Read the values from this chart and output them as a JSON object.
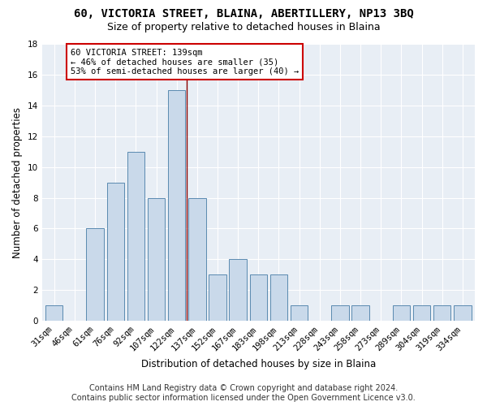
{
  "title": "60, VICTORIA STREET, BLAINA, ABERTILLERY, NP13 3BQ",
  "subtitle": "Size of property relative to detached houses in Blaina",
  "xlabel": "Distribution of detached houses by size in Blaina",
  "ylabel": "Number of detached properties",
  "categories": [
    "31sqm",
    "46sqm",
    "61sqm",
    "76sqm",
    "92sqm",
    "107sqm",
    "122sqm",
    "137sqm",
    "152sqm",
    "167sqm",
    "183sqm",
    "198sqm",
    "213sqm",
    "228sqm",
    "243sqm",
    "258sqm",
    "273sqm",
    "289sqm",
    "304sqm",
    "319sqm",
    "334sqm"
  ],
  "values": [
    1,
    0,
    6,
    9,
    11,
    8,
    15,
    8,
    3,
    4,
    3,
    3,
    1,
    0,
    1,
    1,
    0,
    1,
    1,
    1,
    1
  ],
  "bar_color": "#c9d9ea",
  "bar_edge_color": "#5a8ab0",
  "highlight_line_index": 7,
  "highlight_line_color": "#8b0000",
  "annotation_text_line1": "60 VICTORIA STREET: 139sqm",
  "annotation_text_line2": "← 46% of detached houses are smaller (35)",
  "annotation_text_line3": "53% of semi-detached houses are larger (40) →",
  "annotation_border_color": "#cc0000",
  "ylim": [
    0,
    18
  ],
  "yticks": [
    0,
    2,
    4,
    6,
    8,
    10,
    12,
    14,
    16,
    18
  ],
  "footer_line1": "Contains HM Land Registry data © Crown copyright and database right 2024.",
  "footer_line2": "Contains public sector information licensed under the Open Government Licence v3.0.",
  "title_fontsize": 10,
  "subtitle_fontsize": 9,
  "axis_label_fontsize": 8.5,
  "tick_fontsize": 7.5,
  "annotation_fontsize": 7.5,
  "footer_fontsize": 7
}
